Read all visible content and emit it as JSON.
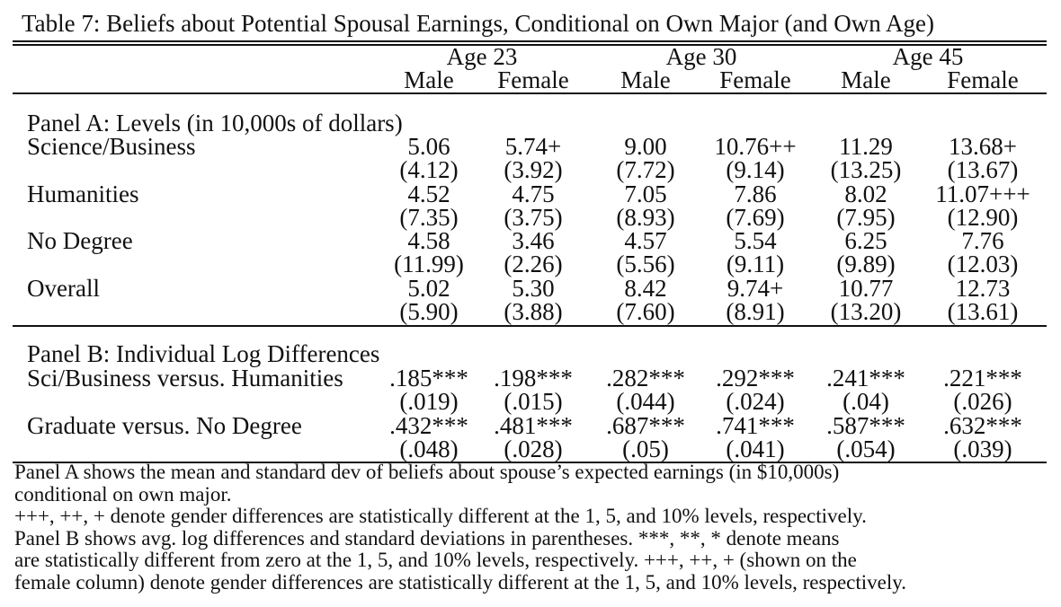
{
  "caption": "Table 7: Beliefs about Potential Spousal Earnings, Conditional on Own Major (and Own Age)",
  "age_groups": [
    "Age 23",
    "Age 30",
    "Age 45"
  ],
  "gender_columns": [
    "Male",
    "Female",
    "Male",
    "Female",
    "Male",
    "Female"
  ],
  "panel_a": {
    "title": "Panel A: Levels (in 10,000s of dollars)",
    "rows": [
      {
        "label": "Science/Business",
        "values": [
          "5.06",
          "5.74+",
          "9.00",
          "10.76++",
          "11.29",
          "13.68+"
        ],
        "sds": [
          "(4.12)",
          "(3.92)",
          "(7.72)",
          "(9.14)",
          "(13.25)",
          "(13.67)"
        ]
      },
      {
        "label": "Humanities",
        "values": [
          "4.52",
          "4.75",
          "7.05",
          "7.86",
          "8.02",
          "11.07+++"
        ],
        "sds": [
          "(7.35)",
          "(3.75)",
          "(8.93)",
          "(7.69)",
          "(7.95)",
          "(12.90)"
        ]
      },
      {
        "label": "No Degree",
        "values": [
          "4.58",
          "3.46",
          "4.57",
          "5.54",
          "6.25",
          "7.76"
        ],
        "sds": [
          "(11.99)",
          "(2.26)",
          "(5.56)",
          "(9.11)",
          "(9.89)",
          "(12.03)"
        ]
      },
      {
        "label": "Overall",
        "values": [
          "5.02",
          "5.30",
          "8.42",
          "9.74+",
          "10.77",
          "12.73"
        ],
        "sds": [
          "(5.90)",
          "(3.88)",
          "(7.60)",
          "(8.91)",
          "(13.20)",
          "(13.61)"
        ]
      }
    ]
  },
  "panel_b": {
    "title": "Panel B: Individual Log Differences",
    "rows": [
      {
        "label": "Sci/Business versus. Humanities",
        "values": [
          ".185***",
          ".198***",
          ".282***",
          ".292***",
          ".241***",
          ".221***"
        ],
        "sds": [
          "(.019)",
          "(.015)",
          "(.044)",
          "(.024)",
          "(.04)",
          "(.026)"
        ]
      },
      {
        "label": "Graduate versus. No Degree",
        "values": [
          ".432***",
          ".481***",
          ".687***",
          ".741***",
          ".587***",
          ".632***"
        ],
        "sds": [
          "(.048)",
          "(.028)",
          "(.05)",
          "(.041)",
          "(.054)",
          "(.039)"
        ]
      }
    ]
  },
  "notes": [
    "Panel A shows the mean and standard dev of beliefs about spouse’s expected earnings (in $10,000s)",
    "conditional on own major.",
    "+++, ++, + denote gender differences are statistically different at the 1, 5, and 10% levels, respectively.",
    "Panel B shows avg. log differences and standard deviations in parentheses. ***, **, * denote means",
    "are statistically different from zero at the 1, 5, and 10% levels, respectively. +++, ++, + (shown on the",
    "female column) denote gender differences are statistically different at the 1, 5, and 10% levels, respectively."
  ]
}
